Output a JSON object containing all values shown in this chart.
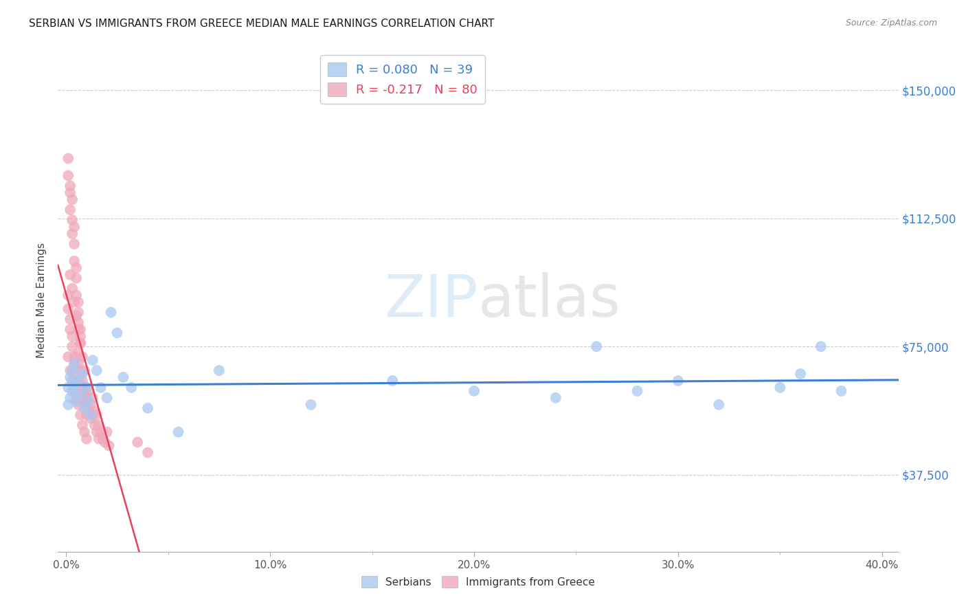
{
  "title": "SERBIAN VS IMMIGRANTS FROM GREECE MEDIAN MALE EARNINGS CORRELATION CHART",
  "source": "Source: ZipAtlas.com",
  "ylabel": "Median Male Earnings",
  "xlabel_ticks": [
    "0.0%",
    "10.0%",
    "20.0%",
    "30.0%",
    "40.0%"
  ],
  "xlabel_vals": [
    0.0,
    0.1,
    0.2,
    0.3,
    0.4
  ],
  "xlabel_minor": [
    0.05,
    0.15,
    0.25,
    0.35
  ],
  "ytick_labels": [
    "$37,500",
    "$75,000",
    "$112,500",
    "$150,000"
  ],
  "ytick_vals": [
    37500,
    75000,
    112500,
    150000
  ],
  "ylim": [
    15000,
    162000
  ],
  "xlim": [
    -0.004,
    0.408
  ],
  "watermark_zip": "ZIP",
  "watermark_atlas": "atlas",
  "legend_top_r1": "R = 0.080",
  "legend_top_n1": "N = 39",
  "legend_top_r2": "R = -0.217",
  "legend_top_n2": "N = 80",
  "legend_bottom": [
    "Serbians",
    "Immigrants from Greece"
  ],
  "serbian_color": "#a8c8f0",
  "greek_color": "#f0a8bc",
  "trend_serbian_color": "#3a7fd4",
  "trend_greek_color": "#e8405a",
  "trend_greek_dash_color": "#f0a0b0",
  "serbian_R": 0.08,
  "greek_R": -0.217,
  "serbian_N": 39,
  "greek_N": 80,
  "serbian_x": [
    0.001,
    0.001,
    0.002,
    0.002,
    0.003,
    0.003,
    0.004,
    0.004,
    0.005,
    0.006,
    0.007,
    0.008,
    0.009,
    0.01,
    0.011,
    0.012,
    0.013,
    0.015,
    0.017,
    0.02,
    0.022,
    0.025,
    0.028,
    0.032,
    0.04,
    0.055,
    0.075,
    0.12,
    0.16,
    0.2,
    0.24,
    0.26,
    0.28,
    0.3,
    0.32,
    0.35,
    0.36,
    0.37,
    0.38
  ],
  "serbian_y": [
    63000,
    58000,
    66000,
    60000,
    68000,
    62000,
    70000,
    64000,
    59000,
    65000,
    61000,
    67000,
    57000,
    63000,
    59000,
    55000,
    71000,
    68000,
    63000,
    60000,
    85000,
    79000,
    66000,
    63000,
    57000,
    50000,
    68000,
    58000,
    65000,
    62000,
    60000,
    75000,
    62000,
    65000,
    58000,
    63000,
    67000,
    75000,
    62000
  ],
  "greek_x": [
    0.001,
    0.001,
    0.002,
    0.002,
    0.002,
    0.003,
    0.003,
    0.003,
    0.004,
    0.004,
    0.004,
    0.005,
    0.005,
    0.005,
    0.006,
    0.006,
    0.006,
    0.007,
    0.007,
    0.007,
    0.001,
    0.001,
    0.002,
    0.002,
    0.003,
    0.003,
    0.004,
    0.004,
    0.005,
    0.005,
    0.006,
    0.006,
    0.007,
    0.007,
    0.008,
    0.008,
    0.008,
    0.009,
    0.009,
    0.009,
    0.01,
    0.01,
    0.01,
    0.011,
    0.011,
    0.012,
    0.012,
    0.013,
    0.013,
    0.014,
    0.014,
    0.015,
    0.015,
    0.016,
    0.016,
    0.017,
    0.018,
    0.019,
    0.02,
    0.021,
    0.001,
    0.002,
    0.003,
    0.004,
    0.005,
    0.006,
    0.007,
    0.008,
    0.009,
    0.01,
    0.002,
    0.003,
    0.004,
    0.005,
    0.006,
    0.007,
    0.008,
    0.009,
    0.035,
    0.04
  ],
  "greek_y": [
    130000,
    125000,
    120000,
    122000,
    115000,
    112000,
    108000,
    118000,
    110000,
    105000,
    100000,
    98000,
    95000,
    90000,
    88000,
    85000,
    82000,
    80000,
    78000,
    76000,
    90000,
    86000,
    83000,
    80000,
    78000,
    75000,
    72000,
    70000,
    68000,
    65000,
    73000,
    70000,
    68000,
    64000,
    62000,
    65000,
    60000,
    58000,
    62000,
    58000,
    63000,
    60000,
    55000,
    57000,
    62000,
    58000,
    54000,
    55000,
    60000,
    56000,
    52000,
    55000,
    50000,
    52000,
    48000,
    50000,
    48000,
    47000,
    50000,
    46000,
    72000,
    68000,
    65000,
    62000,
    60000,
    58000,
    55000,
    52000,
    50000,
    48000,
    96000,
    92000,
    88000,
    84000,
    80000,
    76000,
    72000,
    68000,
    47000,
    44000
  ]
}
